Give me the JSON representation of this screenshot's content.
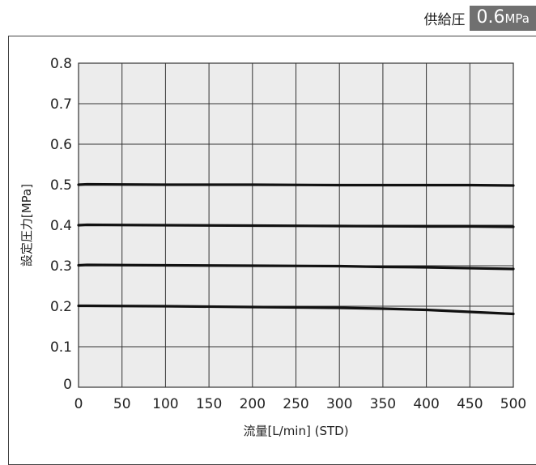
{
  "supply_pressure": {
    "label": "供給圧",
    "value": "0.6",
    "unit": "MPa"
  },
  "chart_data": {
    "type": "line",
    "title": "",
    "xlabel": "流量[L/min] (STD)",
    "ylabel": "設定圧力[MPa]",
    "xlim": [
      0,
      500
    ],
    "ylim": [
      0,
      0.8
    ],
    "x_ticks": [
      "0",
      "50",
      "100",
      "150",
      "200",
      "250",
      "300",
      "350",
      "400",
      "450",
      "500"
    ],
    "y_ticks": [
      "0.1",
      "0.2",
      "0.3",
      "0.4",
      "0.5",
      "0.6",
      "0.7",
      "0.8"
    ],
    "y_zero_label": "0",
    "grid": true,
    "series": [
      {
        "x": [
          0,
          10,
          100,
          200,
          300,
          400,
          450,
          500
        ],
        "values": [
          0.5,
          0.501,
          0.5,
          0.5,
          0.499,
          0.499,
          0.499,
          0.498
        ]
      },
      {
        "x": [
          0,
          10,
          100,
          200,
          300,
          400,
          450,
          500
        ],
        "values": [
          0.4,
          0.401,
          0.4,
          0.399,
          0.398,
          0.397,
          0.397,
          0.396
        ]
      },
      {
        "x": [
          0,
          10,
          100,
          200,
          300,
          350,
          400,
          450,
          500
        ],
        "values": [
          0.301,
          0.302,
          0.301,
          0.3,
          0.299,
          0.297,
          0.296,
          0.294,
          0.292
        ]
      },
      {
        "x": [
          0,
          10,
          100,
          200,
          300,
          350,
          400,
          450,
          500
        ],
        "values": [
          0.201,
          0.201,
          0.2,
          0.198,
          0.196,
          0.194,
          0.191,
          0.186,
          0.181
        ]
      }
    ],
    "colors": {
      "plot_bg": "#ececec",
      "grid": "#333333",
      "line": "#111111"
    }
  }
}
